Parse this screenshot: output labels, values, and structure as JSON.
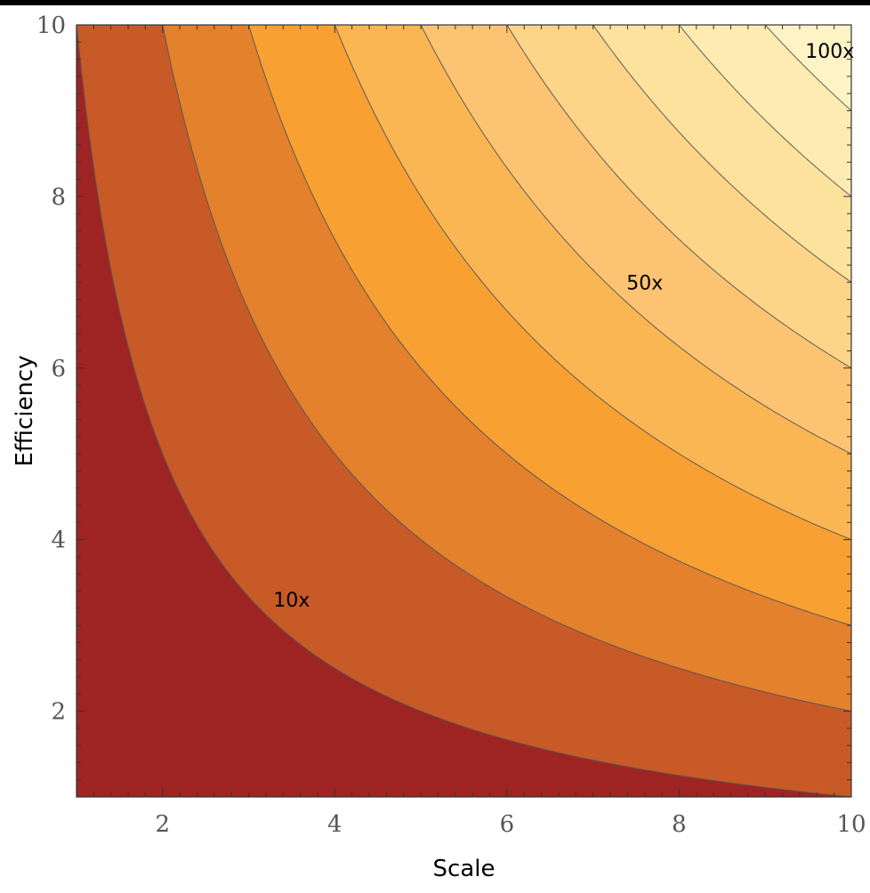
{
  "chart_data": {
    "type": "contour",
    "function": "Scale × Efficiency",
    "xlabel": "Scale",
    "ylabel": "Efficiency",
    "xlim": [
      1,
      10
    ],
    "ylim": [
      1,
      10
    ],
    "x_ticks": [
      2,
      4,
      6,
      8,
      10
    ],
    "y_ticks": [
      2,
      4,
      6,
      8,
      10
    ],
    "y_tick_labels": [
      "2",
      "4",
      "6",
      "8",
      "10"
    ],
    "x_tick_labels": [
      "2",
      "4",
      "6",
      "8",
      "10"
    ],
    "contour_levels": [
      10,
      20,
      30,
      40,
      50,
      60,
      70,
      80,
      90,
      100
    ],
    "band_colors": [
      "#9e2423",
      "#c85a27",
      "#e3812d",
      "#f8a132",
      "#fbb654",
      "#fcc472",
      "#fdd488",
      "#fde29e",
      "#fdebb1",
      "#fef3c4",
      "#fff8d8"
    ],
    "contour_line_color": "#555555",
    "annotations": [
      {
        "text": "10x",
        "x": 3.5,
        "y": 3.3
      },
      {
        "text": "50x",
        "x": 7.6,
        "y": 7.0
      },
      {
        "text": "100x",
        "x": 9.75,
        "y": 9.7
      }
    ]
  }
}
